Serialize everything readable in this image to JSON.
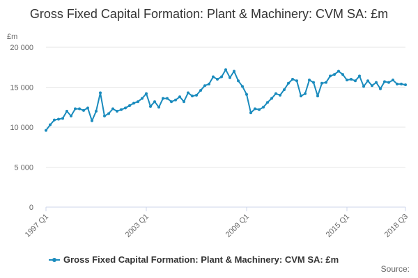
{
  "page": {
    "title": "Gross Fixed Capital Formation: Plant & Machinery: CVM SA: £m",
    "source_label": "Source:"
  },
  "colors": {
    "series": "#1a8bbd",
    "grid": "#e6e6e6",
    "axis": "#ccd6eb",
    "text": "#666666"
  },
  "chart_data": {
    "type": "line",
    "title": "Gross Fixed Capital Formation: Plant & Machinery: CVM SA: £m",
    "ylabel": "£m",
    "xlabel": "",
    "ylim": [
      0,
      20000
    ],
    "yticks": [
      0,
      5000,
      10000,
      15000,
      20000
    ],
    "ytick_labels": [
      "0",
      "5 000",
      "10 000",
      "15 000",
      "20 000"
    ],
    "xtick_labels": [
      "1997 Q1",
      "2003 Q1",
      "2009 Q1",
      "2015 Q1",
      "2018 Q3"
    ],
    "xtick_index": [
      0,
      24,
      48,
      72,
      86
    ],
    "grid": true,
    "legend_position": "bottom-left",
    "series": [
      {
        "name": "Gross Fixed Capital Formation: Plant & Machinery: CVM SA: £m",
        "x": [
          "1997 Q1",
          "1997 Q2",
          "1997 Q3",
          "1997 Q4",
          "1998 Q1",
          "1998 Q2",
          "1998 Q3",
          "1998 Q4",
          "1999 Q1",
          "1999 Q2",
          "1999 Q3",
          "1999 Q4",
          "2000 Q1",
          "2000 Q2",
          "2000 Q3",
          "2000 Q4",
          "2001 Q1",
          "2001 Q2",
          "2001 Q3",
          "2001 Q4",
          "2002 Q1",
          "2002 Q2",
          "2002 Q3",
          "2002 Q4",
          "2003 Q1",
          "2003 Q2",
          "2003 Q3",
          "2003 Q4",
          "2004 Q1",
          "2004 Q2",
          "2004 Q3",
          "2004 Q4",
          "2005 Q1",
          "2005 Q2",
          "2005 Q3",
          "2005 Q4",
          "2006 Q1",
          "2006 Q2",
          "2006 Q3",
          "2006 Q4",
          "2007 Q1",
          "2007 Q2",
          "2007 Q3",
          "2007 Q4",
          "2008 Q1",
          "2008 Q2",
          "2008 Q3",
          "2008 Q4",
          "2009 Q1",
          "2009 Q2",
          "2009 Q3",
          "2009 Q4",
          "2010 Q1",
          "2010 Q2",
          "2010 Q3",
          "2010 Q4",
          "2011 Q1",
          "2011 Q2",
          "2011 Q3",
          "2011 Q4",
          "2012 Q1",
          "2012 Q2",
          "2012 Q3",
          "2012 Q4",
          "2013 Q1",
          "2013 Q2",
          "2013 Q3",
          "2013 Q4",
          "2014 Q1",
          "2014 Q2",
          "2014 Q3",
          "2014 Q4",
          "2015 Q1",
          "2015 Q2",
          "2015 Q3",
          "2015 Q4",
          "2016 Q1",
          "2016 Q2",
          "2016 Q3",
          "2016 Q4",
          "2017 Q1",
          "2017 Q2",
          "2017 Q3",
          "2017 Q4",
          "2018 Q1",
          "2018 Q2",
          "2018 Q3"
        ],
        "values": [
          9600,
          10300,
          10900,
          11000,
          11100,
          12000,
          11400,
          12300,
          12300,
          12100,
          12400,
          10800,
          12000,
          14300,
          11400,
          11700,
          12300,
          12000,
          12200,
          12400,
          12700,
          13000,
          13200,
          13600,
          14200,
          12600,
          13200,
          12500,
          13600,
          13600,
          13200,
          13400,
          13800,
          13200,
          14300,
          13900,
          14000,
          14600,
          15200,
          15400,
          16300,
          16000,
          16300,
          17200,
          16200,
          17000,
          15800,
          15100,
          14100,
          11800,
          12300,
          12200,
          12500,
          13100,
          13600,
          14200,
          14000,
          14700,
          15500,
          16000,
          15800,
          13900,
          14200,
          15900,
          15600,
          13900,
          15500,
          15600,
          16400,
          16600,
          17000,
          16600,
          15900,
          16000,
          15800,
          16400,
          15100,
          15800,
          15200,
          15600,
          14800,
          15700,
          15600,
          15900,
          15400,
          15400,
          15300
        ]
      }
    ]
  }
}
